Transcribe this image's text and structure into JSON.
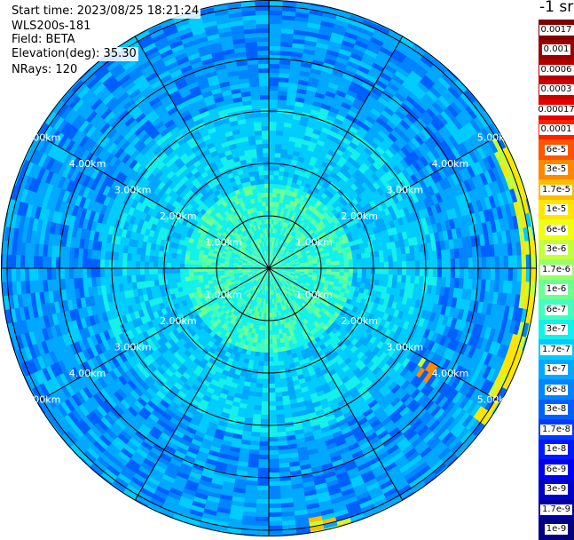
{
  "header": {
    "start_time": "Start time: 2023/08/25 18:21:24",
    "device": "WLS200s-181",
    "field": "Field: BETA",
    "elevation": "Elevation(deg): 35.30",
    "nrays": "NRays: 120"
  },
  "colorbar": {
    "unit_label": "-1 sr",
    "segments": [
      {
        "label": "0.0017",
        "color": "#7f0000"
      },
      {
        "label": "0.001",
        "color": "#990000"
      },
      {
        "label": "0.0006",
        "color": "#b30000"
      },
      {
        "label": "0.0003",
        "color": "#cc0000"
      },
      {
        "label": "0.00017",
        "color": "#e60000"
      },
      {
        "label": "0.0001",
        "color": "#ff2000"
      },
      {
        "label": "6e-5",
        "color": "#ff5500"
      },
      {
        "label": "3e-5",
        "color": "#ff8800"
      },
      {
        "label": "1.7e-5",
        "color": "#ffbb00"
      },
      {
        "label": "1e-5",
        "color": "#ffe600"
      },
      {
        "label": "6e-6",
        "color": "#f0ff10"
      },
      {
        "label": "3e-6",
        "color": "#c4ff3a"
      },
      {
        "label": "1.7e-6",
        "color": "#98ff66"
      },
      {
        "label": "1e-6",
        "color": "#6cff92"
      },
      {
        "label": "6e-7",
        "color": "#40ffbe"
      },
      {
        "label": "3e-7",
        "color": "#14f0ea"
      },
      {
        "label": "1.7e-7",
        "color": "#00ccff"
      },
      {
        "label": "1e-7",
        "color": "#00a8ff"
      },
      {
        "label": "6e-8",
        "color": "#0084ff"
      },
      {
        "label": "3e-8",
        "color": "#0060ff"
      },
      {
        "label": "1.7e-8",
        "color": "#003cff"
      },
      {
        "label": "1e-8",
        "color": "#0018ff"
      },
      {
        "label": "6e-9",
        "color": "#0000f0"
      },
      {
        "label": "3e-9",
        "color": "#0000c8"
      },
      {
        "label": "1.7e-9",
        "color": "#0000a0"
      },
      {
        "label": "1e-9",
        "color": "#000080"
      }
    ]
  },
  "chart_data": {
    "type": "heatmap",
    "projection": "polar-ppi",
    "field": "BETA",
    "elevation_deg": 35.3,
    "n_rays": 120,
    "range_rings_km": [
      1,
      2,
      3,
      4,
      5
    ],
    "ring_labels": [
      {
        "text": "1.00km",
        "ring_km": 1
      },
      {
        "text": "2.00km",
        "ring_km": 2
      },
      {
        "text": "3.00km",
        "ring_km": 3
      },
      {
        "text": "4.00km",
        "ring_km": 4
      },
      {
        "text": "5.00km",
        "ring_km": 5
      }
    ],
    "max_range_km": 5.1,
    "spoke_count": 12,
    "approx_values": {
      "near_field": "3e-7",
      "mid_field": "1e-7",
      "far_field": "6e-8"
    },
    "high_backscatter_areas": [
      {
        "azimuth_deg_from": 60,
        "azimuth_deg_to": 125,
        "range_km": 5.0,
        "value": "1e-5"
      },
      {
        "azimuth_deg_from": 118,
        "azimuth_deg_to": 125,
        "range_km": 3.5,
        "value": "3e-5"
      },
      {
        "azimuth_deg_from": 160,
        "azimuth_deg_to": 168,
        "range_km": 5.0,
        "value": "1.7e-5"
      }
    ]
  }
}
